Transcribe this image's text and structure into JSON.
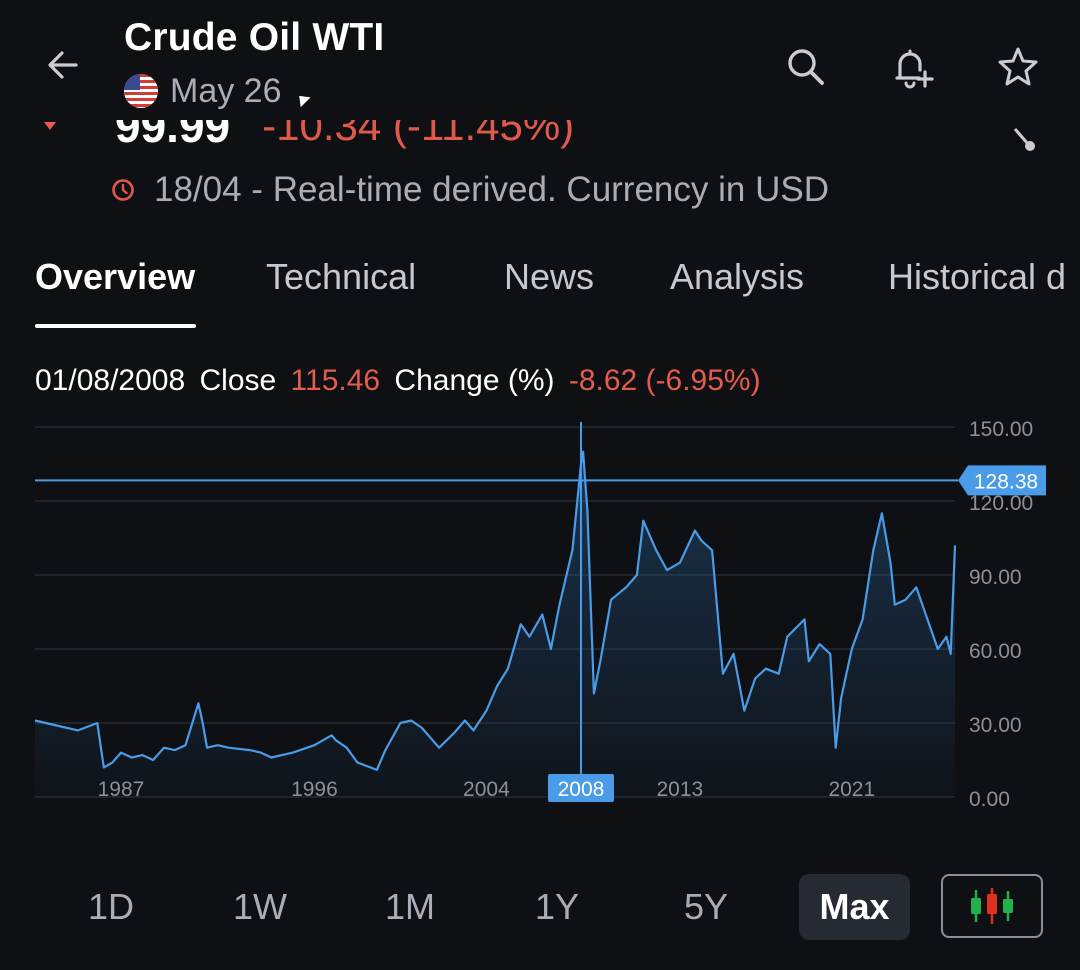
{
  "header": {
    "title": "Crude Oil WTI",
    "date": "May 26"
  },
  "price": {
    "last": "99.99",
    "change": "-10.34 (-11.45%)"
  },
  "realtime": {
    "text": "18/04 - Real-time derived. Currency in USD"
  },
  "tabs": [
    {
      "label": "Overview",
      "active": true
    },
    {
      "label": "Technical",
      "active": false
    },
    {
      "label": "News",
      "active": false
    },
    {
      "label": "Analysis",
      "active": false
    },
    {
      "label": "Historical d",
      "active": false
    }
  ],
  "info": {
    "date": "01/08/2008",
    "close_label": "Close",
    "close_value": "115.46",
    "change_label": "Change (%)",
    "change_value": "-8.62 (-6.95%)"
  },
  "chart_data": {
    "type": "area",
    "y_ticks": [
      "150.00",
      "120.00",
      "90.00",
      "60.00",
      "30.00",
      "0.00"
    ],
    "ylim": [
      0,
      150
    ],
    "x_ticks": [
      "1987",
      "1996",
      "2004",
      "2008",
      "2013",
      "2021"
    ],
    "crosshair": {
      "x_label": "2008",
      "y_label": "128.38",
      "y_value": 128.38
    },
    "series": [
      {
        "x": [
          1983.0,
          1984.0,
          1985.0,
          1985.9,
          1986.2,
          1986.6,
          1987.0,
          1987.5,
          1988.0,
          1988.5,
          1989.0,
          1989.5,
          1990.0,
          1990.6,
          1990.8,
          1991.0,
          1991.5,
          1992.0,
          1993.0,
          1993.5,
          1994.0,
          1995.0,
          1996.0,
          1996.8,
          1997.0,
          1997.5,
          1998.0,
          1998.9,
          1999.3,
          2000.0,
          2000.5,
          2001.0,
          2001.8,
          2002.5,
          2003.0,
          2003.4,
          2004.0,
          2004.5,
          2005.0,
          2005.6,
          2006.0,
          2006.6,
          2007.0,
          2007.4,
          2008.0,
          2008.4,
          2008.5,
          2008.7,
          2009.0,
          2009.3,
          2009.8,
          2010.5,
          2011.0,
          2011.3,
          2011.9,
          2012.4,
          2013.0,
          2013.7,
          2014.0,
          2014.5,
          2015.0,
          2015.5,
          2016.0,
          2016.5,
          2017.0,
          2017.6,
          2018.0,
          2018.8,
          2019.0,
          2019.5,
          2020.0,
          2020.25,
          2020.5,
          2021.0,
          2021.5,
          2022.0,
          2022.4,
          2022.8,
          2023.0,
          2023.5,
          2024.0,
          2024.6,
          2025.0,
          2025.4,
          2025.6,
          2025.8
        ],
        "y": [
          31,
          29,
          27,
          30,
          12,
          14,
          18,
          16,
          17,
          15,
          20,
          19,
          21,
          38,
          30,
          20,
          21,
          20,
          19,
          18,
          16,
          18,
          21,
          25,
          23,
          20,
          14,
          11,
          19,
          30,
          31,
          28,
          20,
          26,
          31,
          27,
          35,
          45,
          52,
          70,
          65,
          74,
          60,
          78,
          100,
          135,
          140,
          116,
          42,
          55,
          80,
          85,
          90,
          112,
          100,
          92,
          95,
          108,
          104,
          100,
          50,
          58,
          35,
          48,
          52,
          50,
          65,
          72,
          55,
          62,
          58,
          20,
          40,
          60,
          72,
          100,
          115,
          95,
          78,
          80,
          85,
          70,
          60,
          65,
          58,
          102
        ]
      }
    ]
  },
  "ranges": [
    {
      "label": "1D",
      "active": false
    },
    {
      "label": "1W",
      "active": false
    },
    {
      "label": "1M",
      "active": false
    },
    {
      "label": "1Y",
      "active": false
    },
    {
      "label": "5Y",
      "active": false
    },
    {
      "label": "Max",
      "active": true
    }
  ],
  "colors": {
    "accent": "#4a9be8",
    "negative": "#e35c4c",
    "background": "#0e1014",
    "candle_green": "#22b14c",
    "candle_red": "#e0301e"
  },
  "icons": {
    "back": "arrow-left-icon",
    "search": "search-icon",
    "alert": "bell-plus-icon",
    "watchlist": "star-icon",
    "realtime": "clock-icon",
    "chart_type": "candlestick-icon"
  }
}
